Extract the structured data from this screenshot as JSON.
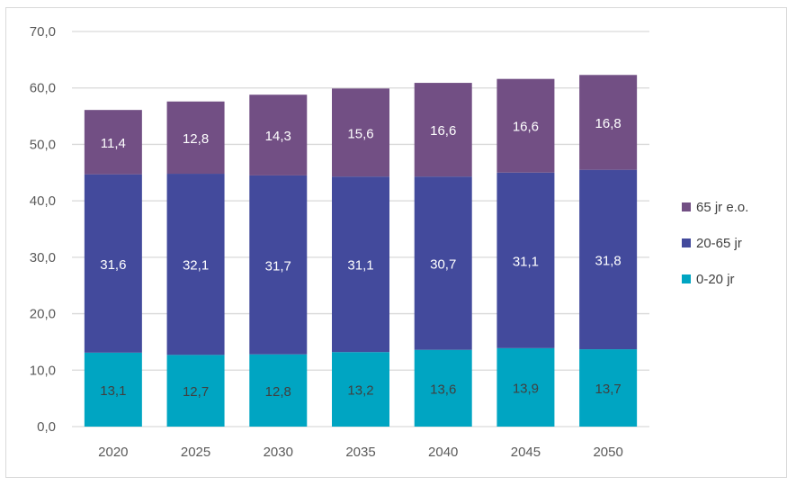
{
  "chart_data": {
    "type": "bar",
    "stacked": true,
    "title": "",
    "xlabel": "",
    "ylabel": "",
    "ylim": [
      0,
      70
    ],
    "yticks": [
      "0,0",
      "10,0",
      "20,0",
      "30,0",
      "40,0",
      "50,0",
      "60,0",
      "70,0"
    ],
    "ytick_values": [
      0,
      10,
      20,
      30,
      40,
      50,
      60,
      70
    ],
    "grid": true,
    "legend_position": "right",
    "categories": [
      "2020",
      "2025",
      "2030",
      "2035",
      "2040",
      "2045",
      "2050"
    ],
    "series": [
      {
        "name": "0-20 jr",
        "color": "#00a5c2",
        "label_color": "#404040",
        "values": [
          13.1,
          12.7,
          12.8,
          13.2,
          13.6,
          13.9,
          13.7
        ],
        "labels": [
          "13,1",
          "12,7",
          "12,8",
          "13,2",
          "13,6",
          "13,9",
          "13,7"
        ]
      },
      {
        "name": "20-65 jr",
        "color": "#434a9c",
        "label_color": "#ffffff",
        "values": [
          31.6,
          32.1,
          31.7,
          31.1,
          30.7,
          31.1,
          31.8
        ],
        "labels": [
          "31,6",
          "32,1",
          "31,7",
          "31,1",
          "30,7",
          "31,1",
          "31,8"
        ]
      },
      {
        "name": "65 jr e.o.",
        "color": "#724f84",
        "label_color": "#ffffff",
        "values": [
          11.4,
          12.8,
          14.3,
          15.6,
          16.6,
          16.6,
          16.8
        ],
        "labels": [
          "11,4",
          "12,8",
          "14,3",
          "15,6",
          "16,6",
          "16,6",
          "16,8"
        ]
      }
    ],
    "legend_order": [
      "65 jr e.o.",
      "20-65 jr",
      "0-20 jr"
    ]
  }
}
